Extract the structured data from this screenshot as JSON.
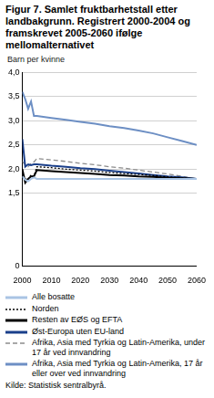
{
  "chart_data": {
    "type": "line",
    "title": "Figur 7. Samlet fruktbarhetstall etter landbakgrunn. Registrert 2000-2004 og framskrevet 2005-2060 ifølge mellomalternativet",
    "y_label": "Barn per kvinne",
    "source": "Kilde: Statistisk sentralbyrå.",
    "x": [
      2000,
      2001,
      2002,
      2003,
      2004,
      2005,
      2010,
      2015,
      2020,
      2025,
      2030,
      2035,
      2040,
      2045,
      2050,
      2055,
      2060
    ],
    "xlim": [
      2000,
      2060
    ],
    "xticks": [
      2000,
      2010,
      2020,
      2030,
      2040,
      2050,
      2060
    ],
    "ylim": [
      0,
      4
    ],
    "yticks": [
      0,
      {
        "value": 1.5,
        "label": "1,5"
      },
      {
        "value": 2,
        "label": "2,0"
      },
      {
        "value": 2.5,
        "label": "2,5"
      },
      {
        "value": 3,
        "label": "3,0"
      },
      {
        "value": 3.5,
        "label": "3,5"
      },
      {
        "value": 4,
        "label": "4,0"
      }
    ],
    "grid": true,
    "legend": "bottom",
    "series": [
      {
        "name": "Alle bosatte",
        "color": "#a9c4e4",
        "line_style": "solid",
        "values": [
          1.85,
          1.78,
          1.75,
          1.8,
          1.83,
          1.8,
          1.8,
          1.8,
          1.8,
          1.8,
          1.8,
          1.8,
          1.8,
          1.8,
          1.8,
          1.8,
          1.8
        ]
      },
      {
        "name": "Norden",
        "color": "#000000",
        "line_style": "dotted",
        "values": [
          1.95,
          1.8,
          1.78,
          1.88,
          1.85,
          2.05,
          2.03,
          2.0,
          1.98,
          1.96,
          1.93,
          1.91,
          1.89,
          1.87,
          1.84,
          1.82,
          1.8
        ]
      },
      {
        "name": "Resten av EØS og EFTA",
        "color": "#000000",
        "line_style": "solid",
        "values": [
          2.0,
          1.72,
          1.8,
          1.85,
          1.85,
          1.98,
          1.96,
          1.94,
          1.92,
          1.9,
          1.88,
          1.87,
          1.85,
          1.84,
          1.82,
          1.81,
          1.8
        ]
      },
      {
        "name": "Øst-Europa uten EU-land",
        "color": "#1a3f8a",
        "line_style": "solid",
        "values": [
          2.62,
          2.05,
          2.1,
          2.08,
          2.1,
          2.1,
          2.07,
          2.05,
          2.02,
          2.0,
          1.97,
          1.94,
          1.91,
          1.88,
          1.85,
          1.83,
          1.8
        ]
      },
      {
        "name": "Afrika, Asia med Tyrkia og Latin-Amerika, under 17 år ved innvandring",
        "color": "#8c8c8c",
        "line_style": "dashed",
        "values": [
          2.15,
          2.1,
          2.05,
          2.12,
          2.15,
          2.22,
          2.19,
          2.16,
          2.12,
          2.09,
          2.05,
          2.02,
          1.98,
          1.94,
          1.9,
          1.85,
          1.8
        ]
      },
      {
        "name": "Afrika, Asia med Tyrkia og Latin-Amerika, 17 år eller over ved innvandring",
        "color": "#6d8fc4",
        "line_style": "solid",
        "values": [
          3.6,
          3.45,
          3.25,
          3.4,
          3.1,
          3.1,
          3.06,
          3.02,
          2.98,
          2.94,
          2.89,
          2.85,
          2.8,
          2.74,
          2.66,
          2.58,
          2.5
        ]
      }
    ]
  }
}
